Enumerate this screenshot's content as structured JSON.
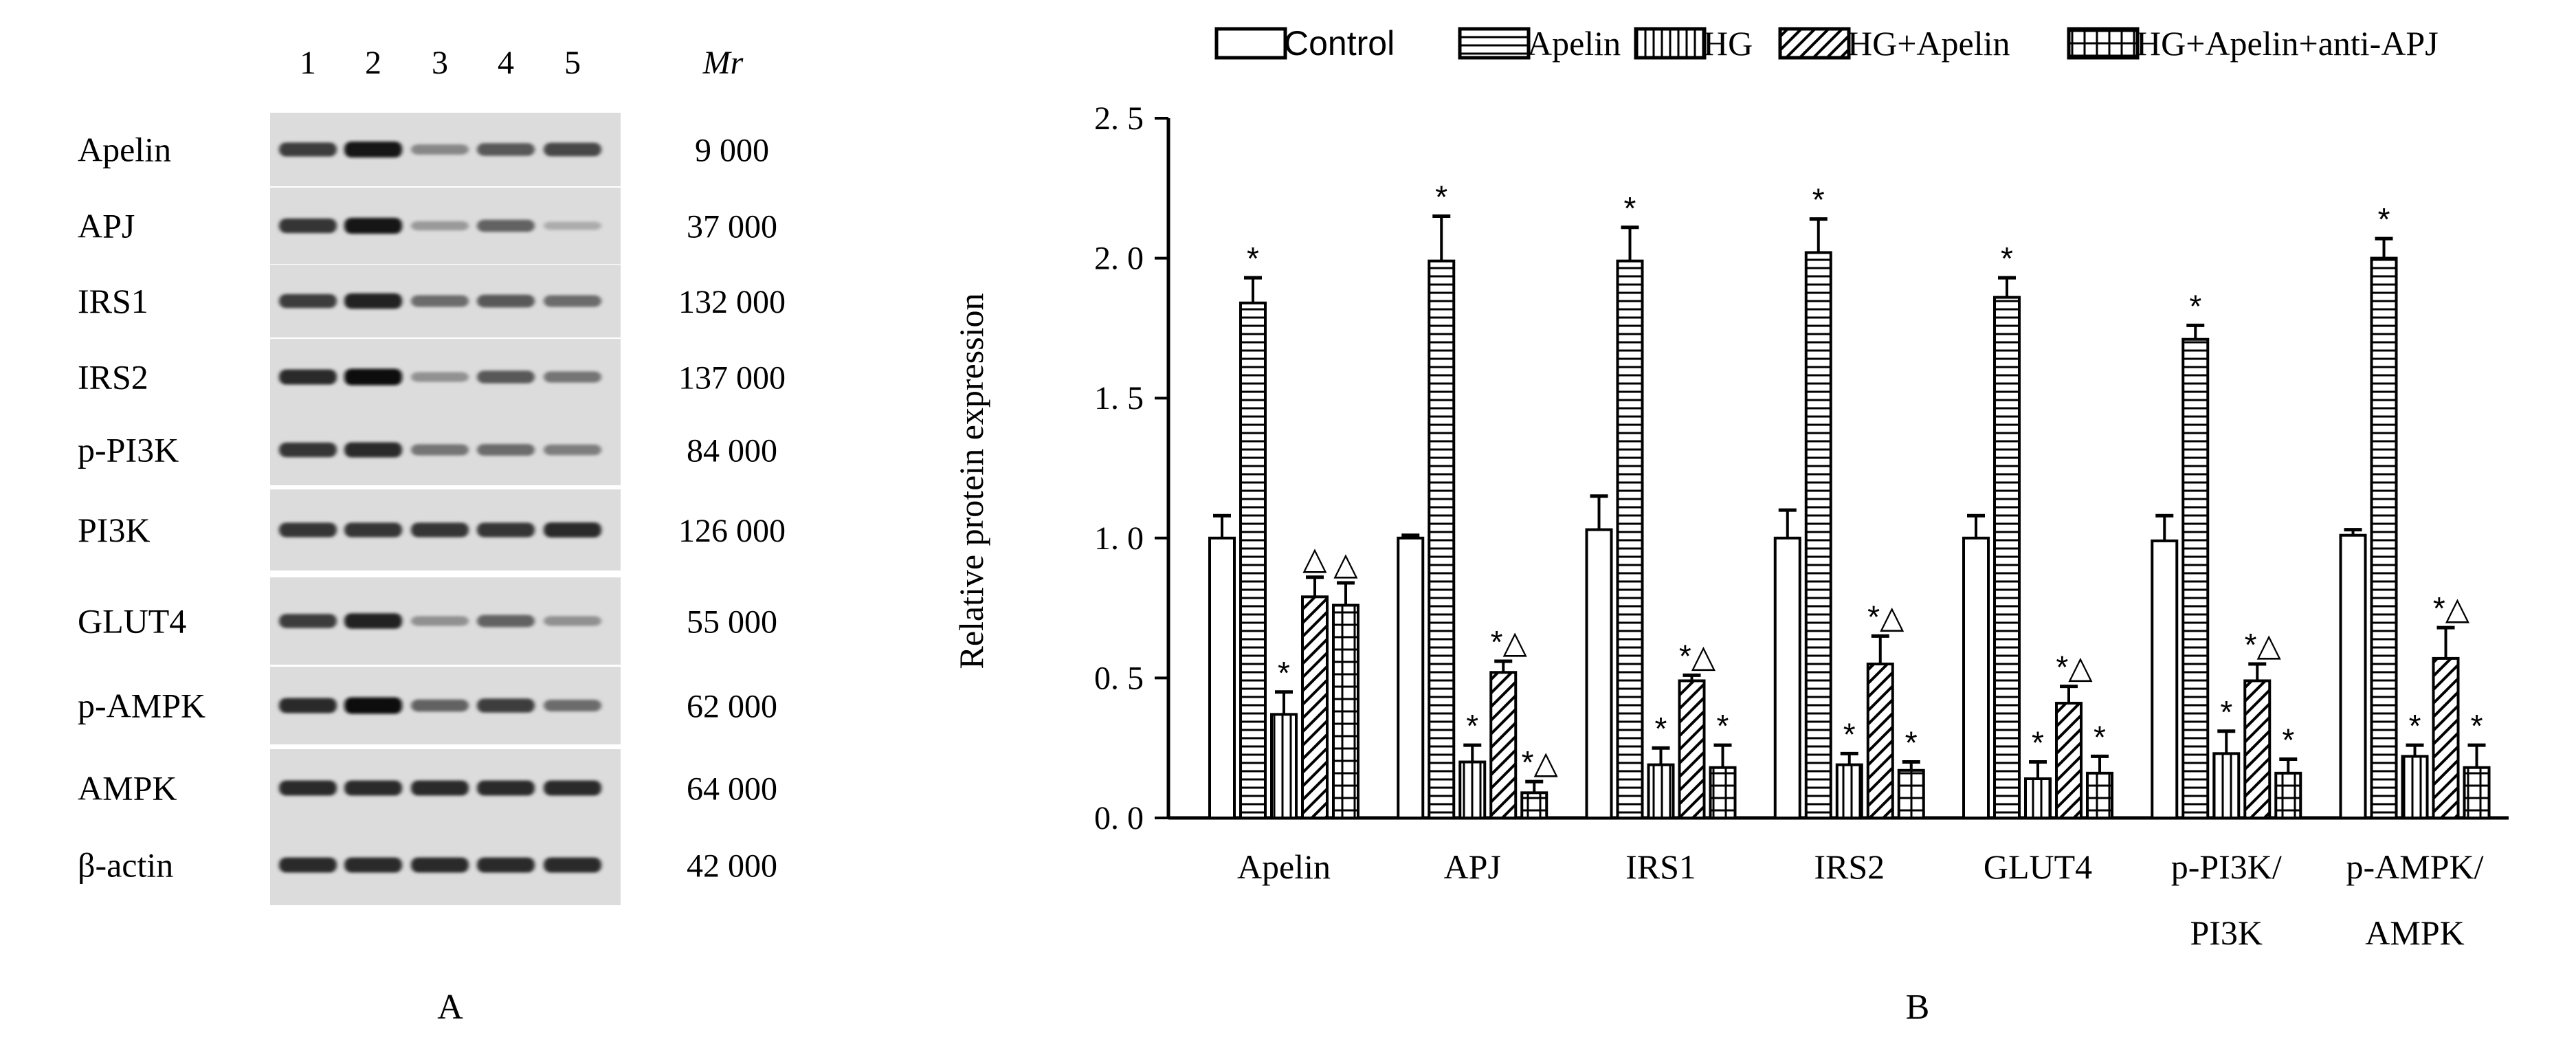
{
  "panel_a": {
    "label": "A",
    "lane_numbers": [
      "1",
      "2",
      "3",
      "4",
      "5"
    ],
    "mr_header": "Mr",
    "blots": [
      {
        "name": "Apelin",
        "mr": "9 000",
        "intensity": [
          0.75,
          0.95,
          0.35,
          0.6,
          0.7
        ]
      },
      {
        "name": "APJ",
        "mr": "37 000",
        "intensity": [
          0.8,
          0.95,
          0.25,
          0.55,
          0.15
        ]
      },
      {
        "name": "IRS1",
        "mr": "132 000",
        "intensity": [
          0.75,
          0.9,
          0.5,
          0.6,
          0.5
        ]
      },
      {
        "name": "IRS2",
        "mr": "137 000",
        "intensity": [
          0.85,
          1.0,
          0.3,
          0.6,
          0.45
        ]
      },
      {
        "name": "p-PI3K",
        "mr": "84 000",
        "intensity": [
          0.8,
          0.85,
          0.45,
          0.5,
          0.4
        ]
      },
      {
        "name": "PI3K",
        "mr": "126 000",
        "intensity": [
          0.8,
          0.8,
          0.8,
          0.8,
          0.85
        ]
      },
      {
        "name": "GLUT4",
        "mr": "55 000",
        "intensity": [
          0.75,
          0.9,
          0.3,
          0.55,
          0.3
        ]
      },
      {
        "name": "p-AMPK",
        "mr": "62 000",
        "intensity": [
          0.85,
          1.0,
          0.55,
          0.75,
          0.5
        ]
      },
      {
        "name": "AMPK",
        "mr": "64 000",
        "intensity": [
          0.85,
          0.85,
          0.85,
          0.85,
          0.85
        ]
      },
      {
        "name": "β-actin",
        "mr": "42 000",
        "intensity": [
          0.85,
          0.85,
          0.85,
          0.85,
          0.85
        ]
      }
    ]
  },
  "chart_data": {
    "type": "bar",
    "panel_label": "B",
    "ylabel": "Relative protein expression",
    "xlabel": "",
    "ylim": [
      0,
      2.5
    ],
    "yticks": [
      "0. 0",
      "0. 5",
      "1. 0",
      "1. 5",
      "2. 0",
      "2. 5"
    ],
    "grid": false,
    "legend_position": "top",
    "categories": [
      "Apelin",
      "APJ",
      "IRS1",
      "IRS2",
      "GLUT4",
      "p-PI3K/\nPI3K",
      "p-AMPK/\nAMPK"
    ],
    "series": [
      {
        "name": "Control",
        "pattern": "blank",
        "values": [
          1.0,
          1.0,
          1.03,
          1.0,
          1.0,
          0.99,
          1.01
        ],
        "errors": [
          0.08,
          0.01,
          0.12,
          0.1,
          0.08,
          0.09,
          0.02
        ],
        "marks": [
          "",
          "",
          "",
          "",
          "",
          "",
          ""
        ]
      },
      {
        "name": "Apelin",
        "pattern": "horizontal",
        "values": [
          1.84,
          1.99,
          1.99,
          2.02,
          1.86,
          1.71,
          2.0
        ],
        "errors": [
          0.09,
          0.16,
          0.12,
          0.12,
          0.07,
          0.05,
          0.07
        ],
        "marks": [
          "*",
          "*",
          "*",
          "*",
          "*",
          "*",
          "*"
        ]
      },
      {
        "name": "HG",
        "pattern": "vertical",
        "values": [
          0.37,
          0.2,
          0.19,
          0.19,
          0.14,
          0.23,
          0.22
        ],
        "errors": [
          0.08,
          0.06,
          0.06,
          0.04,
          0.06,
          0.08,
          0.04
        ],
        "marks": [
          "*",
          "*",
          "*",
          "*",
          "*",
          "*",
          "*"
        ]
      },
      {
        "name": "HG+Apelin",
        "pattern": "diagonal",
        "values": [
          0.79,
          0.52,
          0.49,
          0.55,
          0.41,
          0.49,
          0.57
        ],
        "errors": [
          0.07,
          0.04,
          0.02,
          0.1,
          0.06,
          0.06,
          0.11
        ],
        "marks": [
          "△",
          "*△",
          "*△",
          "*△",
          "*△",
          "*△",
          "*△"
        ]
      },
      {
        "name": "HG+Apelin+anti-APJ",
        "pattern": "grid",
        "values": [
          0.76,
          0.09,
          0.18,
          0.17,
          0.16,
          0.16,
          0.18
        ],
        "errors": [
          0.08,
          0.04,
          0.08,
          0.03,
          0.06,
          0.05,
          0.08
        ],
        "marks": [
          "△",
          "*△",
          "*",
          "*",
          "*",
          "*",
          "*"
        ]
      }
    ]
  }
}
